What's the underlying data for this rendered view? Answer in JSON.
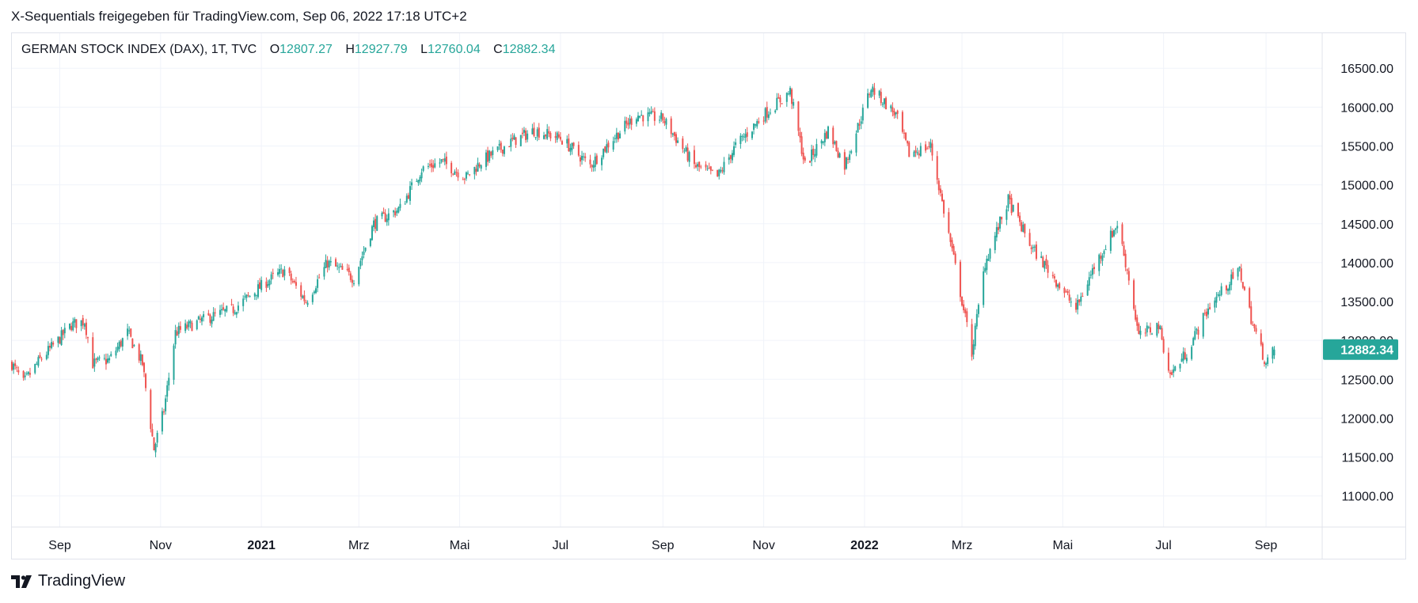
{
  "header": {
    "caption": "X-Sequentials freigegeben für TradingView.com, Sep 06, 2022 17:18 UTC+2"
  },
  "legend": {
    "symbol": "GERMAN STOCK INDEX (DAX), 1T, TVC",
    "open_label": "O",
    "open": "12807.27",
    "high_label": "H",
    "high": "12927.79",
    "low_label": "L",
    "low": "12760.04",
    "close_label": "C",
    "close": "12882.34"
  },
  "footer": {
    "brand": "TradingView",
    "logo_icon": "tradingview-logo-icon"
  },
  "colors": {
    "up": "#26a69a",
    "down": "#ef5350",
    "grid": "#f0f3fa",
    "axis_text": "#131722",
    "badge": "#26a69a"
  },
  "chart_data": {
    "type": "candlestick",
    "title": "GERMAN STOCK INDEX (DAX), 1T, TVC",
    "interval": "1T",
    "y_axis_ticks": [
      "11000.00",
      "11500.00",
      "12000.00",
      "12500.00",
      "13000.00",
      "13500.00",
      "14000.00",
      "14500.00",
      "15000.00",
      "15500.00",
      "16000.00",
      "16500.00"
    ],
    "ylim": [
      10600,
      16950
    ],
    "x_axis_ticks": [
      {
        "label": "Sep",
        "date": "2020-09-01",
        "bold": false
      },
      {
        "label": "Nov",
        "date": "2020-11-01",
        "bold": false
      },
      {
        "label": "2021",
        "date": "2021-01-01",
        "bold": true
      },
      {
        "label": "Mrz",
        "date": "2021-03-01",
        "bold": false
      },
      {
        "label": "Mai",
        "date": "2021-05-01",
        "bold": false
      },
      {
        "label": "Jul",
        "date": "2021-07-01",
        "bold": false
      },
      {
        "label": "Sep",
        "date": "2021-09-01",
        "bold": false
      },
      {
        "label": "Nov",
        "date": "2021-11-01",
        "bold": false
      },
      {
        "label": "2022",
        "date": "2022-01-01",
        "bold": true
      },
      {
        "label": "Mrz",
        "date": "2022-03-01",
        "bold": false
      },
      {
        "label": "Mai",
        "date": "2022-05-01",
        "bold": false
      },
      {
        "label": "Jul",
        "date": "2022-07-01",
        "bold": false
      },
      {
        "label": "Sep",
        "date": "2022-09-01",
        "bold": false
      }
    ],
    "x_range": [
      "2020-08-03",
      "2022-10-05"
    ],
    "last_price": "12882.34",
    "close_path": [
      {
        "date": "2020-08-03",
        "close": 12700
      },
      {
        "date": "2020-08-10",
        "close": 12450
      },
      {
        "date": "2020-08-20",
        "close": 12750
      },
      {
        "date": "2020-08-31",
        "close": 13000
      },
      {
        "date": "2020-09-08",
        "close": 13200
      },
      {
        "date": "2020-09-16",
        "close": 13250
      },
      {
        "date": "2020-09-21",
        "close": 12700
      },
      {
        "date": "2020-10-01",
        "close": 12750
      },
      {
        "date": "2020-10-12",
        "close": 13100
      },
      {
        "date": "2020-10-21",
        "close": 12700
      },
      {
        "date": "2020-10-28",
        "close": 11600
      },
      {
        "date": "2020-11-03",
        "close": 12100
      },
      {
        "date": "2020-11-10",
        "close": 13100
      },
      {
        "date": "2020-11-20",
        "close": 13200
      },
      {
        "date": "2020-12-01",
        "close": 13300
      },
      {
        "date": "2020-12-15",
        "close": 13400
      },
      {
        "date": "2021-01-04",
        "close": 13750
      },
      {
        "date": "2021-01-15",
        "close": 13900
      },
      {
        "date": "2021-01-28",
        "close": 13500
      },
      {
        "date": "2021-02-10",
        "close": 14000
      },
      {
        "date": "2021-02-26",
        "close": 13800
      },
      {
        "date": "2021-03-10",
        "close": 14500
      },
      {
        "date": "2021-03-26",
        "close": 14700
      },
      {
        "date": "2021-04-08",
        "close": 15200
      },
      {
        "date": "2021-04-20",
        "close": 15300
      },
      {
        "date": "2021-05-05",
        "close": 15100
      },
      {
        "date": "2021-05-14",
        "close": 15300
      },
      {
        "date": "2021-06-01",
        "close": 15550
      },
      {
        "date": "2021-06-15",
        "close": 15700
      },
      {
        "date": "2021-07-01",
        "close": 15600
      },
      {
        "date": "2021-07-19",
        "close": 15250
      },
      {
        "date": "2021-08-02",
        "close": 15600
      },
      {
        "date": "2021-08-16",
        "close": 15900
      },
      {
        "date": "2021-09-01",
        "close": 15850
      },
      {
        "date": "2021-09-20",
        "close": 15250
      },
      {
        "date": "2021-10-04",
        "close": 15100
      },
      {
        "date": "2021-10-15",
        "close": 15500
      },
      {
        "date": "2021-11-01",
        "close": 15900
      },
      {
        "date": "2021-11-17",
        "close": 16200
      },
      {
        "date": "2021-11-26",
        "close": 15250
      },
      {
        "date": "2021-12-10",
        "close": 15700
      },
      {
        "date": "2021-12-20",
        "close": 15250
      },
      {
        "date": "2022-01-05",
        "close": 16250
      },
      {
        "date": "2022-01-20",
        "close": 15900
      },
      {
        "date": "2022-01-28",
        "close": 15400
      },
      {
        "date": "2022-02-10",
        "close": 15500
      },
      {
        "date": "2022-02-24",
        "close": 14050
      },
      {
        "date": "2022-03-07",
        "close": 12850
      },
      {
        "date": "2022-03-15",
        "close": 14000
      },
      {
        "date": "2022-03-29",
        "close": 14800
      },
      {
        "date": "2022-04-12",
        "close": 14200
      },
      {
        "date": "2022-04-26",
        "close": 13800
      },
      {
        "date": "2022-05-09",
        "close": 13400
      },
      {
        "date": "2022-05-20",
        "close": 13950
      },
      {
        "date": "2022-06-03",
        "close": 14500
      },
      {
        "date": "2022-06-10",
        "close": 13800
      },
      {
        "date": "2022-06-16",
        "close": 13050
      },
      {
        "date": "2022-06-28",
        "close": 13200
      },
      {
        "date": "2022-07-05",
        "close": 12550
      },
      {
        "date": "2022-07-15",
        "close": 12850
      },
      {
        "date": "2022-07-29",
        "close": 13450
      },
      {
        "date": "2022-08-16",
        "close": 13900
      },
      {
        "date": "2022-08-24",
        "close": 13200
      },
      {
        "date": "2022-09-01",
        "close": 12700
      },
      {
        "date": "2022-09-06",
        "close": 12882.34
      }
    ],
    "last_candle": {
      "date": "2022-09-06",
      "open": 12807.27,
      "high": 12927.79,
      "low": 12760.04,
      "close": 12882.34
    }
  }
}
